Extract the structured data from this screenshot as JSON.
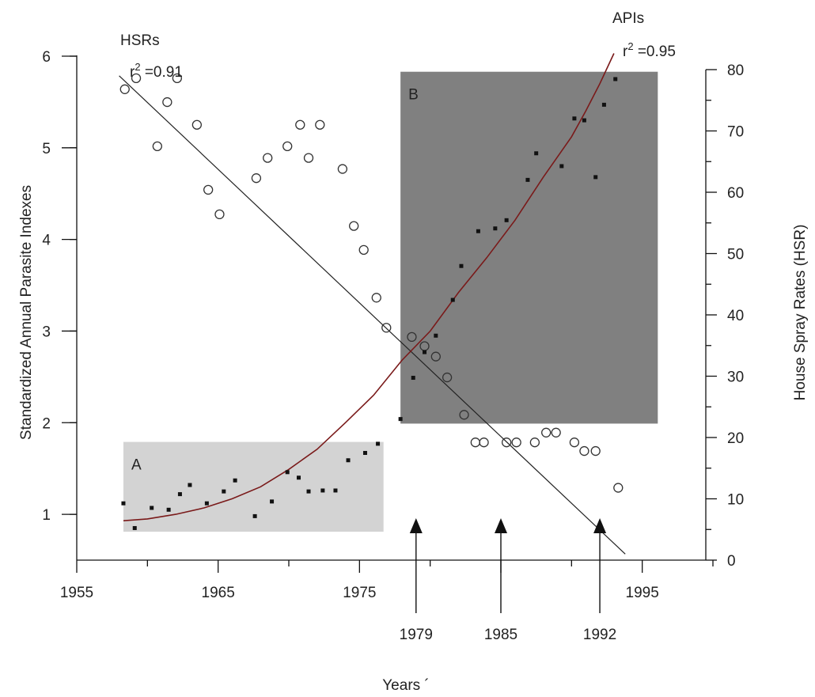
{
  "chart_data": {
    "type": "scatter",
    "xlabel": "Years ´",
    "ylabel_left": "Standardized Annual Parasite Indexes",
    "ylabel_right": "House Spray Rates (HSR)",
    "x_ticks": [
      "1955",
      "1965",
      "1975",
      "1995"
    ],
    "x_ticks_extra": [
      "1979",
      "1985",
      "1992"
    ],
    "xlim": [
      1955,
      2000
    ],
    "ylim_left": [
      0.5,
      6
    ],
    "ylim_right": [
      0,
      80
    ],
    "left_ticks": [
      1,
      2,
      3,
      4,
      5,
      6
    ],
    "right_ticks": [
      0,
      10,
      20,
      30,
      40,
      50,
      60,
      70,
      80
    ],
    "regions": [
      {
        "label": "A",
        "x": [
          1958.3,
          1976.7
        ],
        "y_left": [
          0.81,
          1.79
        ],
        "color": "#d3d3d3"
      },
      {
        "label": "B",
        "x": [
          1977.9,
          1996.1
        ],
        "y_left": [
          1.99,
          5.83
        ],
        "color": "#808080"
      }
    ],
    "annotations": {
      "hsr_label": "HSRs",
      "hsr_r2": "r",
      "hsr_r2_value": " =0.91",
      "api_label": "APIs",
      "api_r2": "r",
      "api_r2_value": " =0.95",
      "superscript": "2"
    },
    "arrows": [
      1979,
      1985,
      1992
    ],
    "series": [
      {
        "name": "HSRs",
        "marker": "open-circle",
        "axis": "right",
        "points": [
          [
            1958.4,
            76.8
          ],
          [
            1959.2,
            78.6
          ],
          [
            1960.7,
            67.5
          ],
          [
            1961.4,
            74.7
          ],
          [
            1962.1,
            78.6
          ],
          [
            1963.5,
            71.0
          ],
          [
            1964.3,
            60.4
          ],
          [
            1965.1,
            56.4
          ],
          [
            1967.7,
            62.3
          ],
          [
            1968.5,
            65.6
          ],
          [
            1969.9,
            67.5
          ],
          [
            1970.8,
            71.0
          ],
          [
            1971.4,
            65.6
          ],
          [
            1972.2,
            71.0
          ],
          [
            1973.8,
            63.8
          ],
          [
            1974.6,
            54.5
          ],
          [
            1975.3,
            50.6
          ],
          [
            1976.2,
            42.8
          ],
          [
            1976.9,
            37.9
          ],
          [
            1978.7,
            36.4
          ],
          [
            1979.6,
            34.9
          ],
          [
            1980.4,
            33.2
          ],
          [
            1981.2,
            29.8
          ],
          [
            1982.4,
            23.7
          ],
          [
            1983.2,
            19.2
          ],
          [
            1983.8,
            19.2
          ],
          [
            1985.4,
            19.2
          ],
          [
            1986.1,
            19.2
          ],
          [
            1987.4,
            19.2
          ],
          [
            1988.2,
            20.8
          ],
          [
            1988.9,
            20.8
          ],
          [
            1990.2,
            19.2
          ],
          [
            1990.9,
            17.8
          ],
          [
            1991.7,
            17.8
          ],
          [
            1993.3,
            11.8
          ]
        ]
      },
      {
        "name": "APIs",
        "marker": "filled-square",
        "axis": "left",
        "points": [
          [
            1958.3,
            1.12
          ],
          [
            1959.1,
            0.85
          ],
          [
            1960.3,
            1.07
          ],
          [
            1961.5,
            1.05
          ],
          [
            1962.3,
            1.22
          ],
          [
            1963.0,
            1.32
          ],
          [
            1964.2,
            1.12
          ],
          [
            1965.4,
            1.25
          ],
          [
            1966.2,
            1.37
          ],
          [
            1967.6,
            0.98
          ],
          [
            1968.8,
            1.14
          ],
          [
            1969.9,
            1.46
          ],
          [
            1970.7,
            1.4
          ],
          [
            1971.4,
            1.25
          ],
          [
            1972.4,
            1.26
          ],
          [
            1973.3,
            1.26
          ],
          [
            1974.2,
            1.59
          ],
          [
            1975.4,
            1.67
          ],
          [
            1976.3,
            1.77
          ],
          [
            1977.9,
            2.04
          ],
          [
            1978.8,
            2.49
          ],
          [
            1979.6,
            2.77
          ],
          [
            1980.4,
            2.95
          ],
          [
            1981.6,
            3.34
          ],
          [
            1982.2,
            3.71
          ],
          [
            1983.4,
            4.09
          ],
          [
            1984.6,
            4.12
          ],
          [
            1985.4,
            4.21
          ],
          [
            1986.9,
            4.65
          ],
          [
            1987.5,
            4.94
          ],
          [
            1989.3,
            4.8
          ],
          [
            1990.2,
            5.32
          ],
          [
            1990.9,
            5.3
          ],
          [
            1991.7,
            4.68
          ],
          [
            1992.3,
            5.47
          ],
          [
            1993.1,
            5.75
          ]
        ]
      }
    ],
    "trend_lines": [
      {
        "name": "HSRs fit",
        "axis": "right",
        "color": "#222222",
        "points": [
          [
            1958.0,
            79.0
          ],
          [
            1993.8,
            1.0
          ]
        ]
      },
      {
        "name": "APIs fit",
        "axis": "left",
        "color": "#7a1a1a",
        "points": [
          [
            1958.3,
            0.93
          ],
          [
            1960.0,
            0.95
          ],
          [
            1962.0,
            1.0
          ],
          [
            1964.0,
            1.07
          ],
          [
            1966.0,
            1.17
          ],
          [
            1968.0,
            1.3
          ],
          [
            1970.0,
            1.49
          ],
          [
            1972.0,
            1.71
          ],
          [
            1974.0,
            2.0
          ],
          [
            1976.0,
            2.3
          ],
          [
            1978.0,
            2.68
          ],
          [
            1980.0,
            3.0
          ],
          [
            1982.0,
            3.42
          ],
          [
            1984.0,
            3.8
          ],
          [
            1986.0,
            4.21
          ],
          [
            1988.0,
            4.68
          ],
          [
            1990.0,
            5.12
          ],
          [
            1991.0,
            5.4
          ],
          [
            1992.0,
            5.7
          ],
          [
            1993.0,
            6.03
          ]
        ]
      }
    ]
  }
}
